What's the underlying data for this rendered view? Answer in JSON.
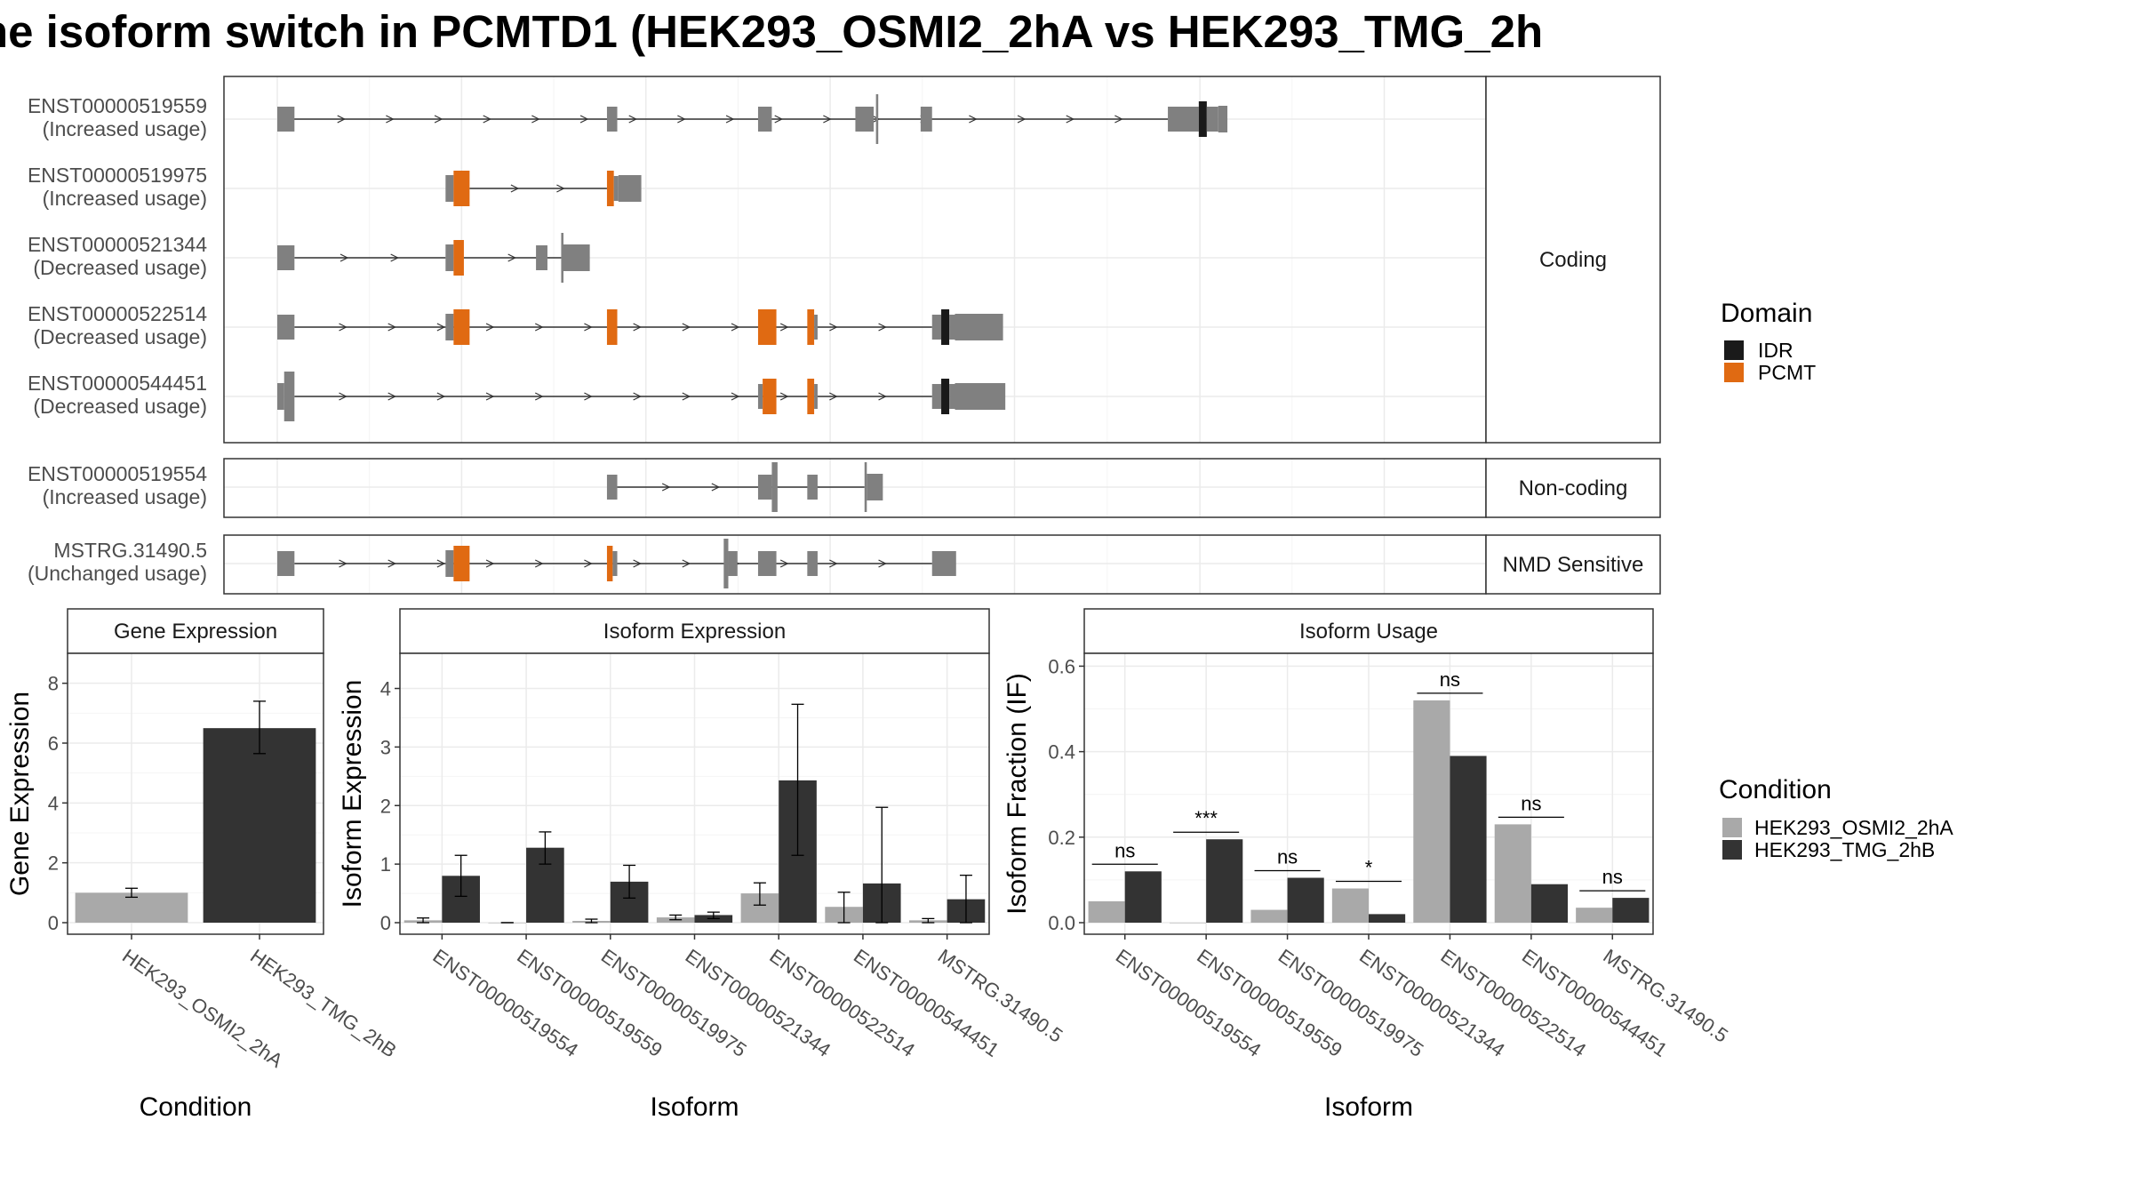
{
  "title": "ne isoform switch in PCMTD1 (HEK293_OSMI2_2hA vs HEK293_TMG_2h",
  "colors": {
    "exon": "#808080",
    "PCMT": "#E06A12",
    "IDR": "#1a1a1a",
    "HEK293_OSMI2_2hA": "#A9A9A9",
    "HEK293_TMG_2hB": "#333333",
    "grid": "#EBEBEB",
    "strip_bg": "#FFFFFF"
  },
  "chart_data": [
    {
      "type": "gene-structure",
      "genomic_range": [
        0,
        100
      ],
      "facets": [
        {
          "label": "Coding",
          "transcripts": [
            {
              "id": "ENST00000519559",
              "usage": "(Increased usage)"
            },
            {
              "id": "ENST00000519975",
              "usage": "(Increased usage)"
            },
            {
              "id": "ENST00000521344",
              "usage": "(Decreased usage)"
            },
            {
              "id": "ENST00000522514",
              "usage": "(Decreased usage)"
            },
            {
              "id": "ENST00000544451",
              "usage": "(Decreased usage)"
            }
          ]
        },
        {
          "label": "Non-coding",
          "transcripts": [
            {
              "id": "ENST00000519554",
              "usage": "(Increased usage)"
            }
          ]
        },
        {
          "label": "NMD Sensitive",
          "transcripts": [
            {
              "id": "MSTRG.31490.5",
              "usage": "(Unchanged usage)"
            }
          ]
        }
      ],
      "legend": {
        "title": "Domain",
        "entries": [
          "IDR",
          "PCMT"
        ]
      }
    },
    {
      "type": "bar",
      "title": "Gene Expression",
      "xlabel": "Condition",
      "ylabel": "Gene Expression",
      "categories": [
        "HEK293_OSMI2_2hA",
        "HEK293_TMG_2hB"
      ],
      "values": [
        1.0,
        6.5
      ],
      "error": [
        [
          0.85,
          1.15
        ],
        [
          5.65,
          7.4
        ]
      ],
      "ylim": [
        0,
        9
      ],
      "yticks": [
        0,
        2,
        4,
        6,
        8
      ]
    },
    {
      "type": "bar",
      "title": "Isoform Expression",
      "xlabel": "Isoform",
      "ylabel": "Isoform Expression",
      "categories": [
        "ENST00000519554",
        "ENST00000519559",
        "ENST00000519975",
        "ENST00000521344",
        "ENST00000522514",
        "ENST00000544451",
        "MSTRG.31490.5"
      ],
      "series": [
        {
          "name": "HEK293_OSMI2_2hA",
          "values": [
            0.04,
            0.0,
            0.03,
            0.09,
            0.5,
            0.27,
            0.04
          ],
          "error": [
            [
              0.0,
              0.08
            ],
            [
              0.0,
              0.0
            ],
            [
              0.0,
              0.06
            ],
            [
              0.05,
              0.13
            ],
            [
              0.3,
              0.68
            ],
            [
              0.0,
              0.52
            ],
            [
              0.0,
              0.07
            ]
          ]
        },
        {
          "name": "HEK293_TMG_2hB",
          "values": [
            0.8,
            1.28,
            0.7,
            0.13,
            2.43,
            0.67,
            0.4
          ],
          "error": [
            [
              0.45,
              1.15
            ],
            [
              1.0,
              1.55
            ],
            [
              0.42,
              0.98
            ],
            [
              0.07,
              0.18
            ],
            [
              1.15,
              3.73
            ],
            [
              0.0,
              1.97
            ],
            [
              0.0,
              0.81
            ]
          ]
        }
      ],
      "ylim": [
        0,
        4.6
      ],
      "yticks": [
        0,
        1,
        2,
        3,
        4
      ]
    },
    {
      "type": "bar",
      "title": "Isoform Usage",
      "xlabel": "Isoform",
      "ylabel": "Isoform Fraction (IF)",
      "categories": [
        "ENST00000519554",
        "ENST00000519559",
        "ENST00000519975",
        "ENST00000521344",
        "ENST00000522514",
        "ENST00000544451",
        "MSTRG.31490.5"
      ],
      "series": [
        {
          "name": "HEK293_OSMI2_2hA",
          "values": [
            0.05,
            0.0,
            0.03,
            0.08,
            0.52,
            0.23,
            0.035
          ]
        },
        {
          "name": "HEK293_TMG_2hB",
          "values": [
            0.12,
            0.195,
            0.105,
            0.02,
            0.39,
            0.09,
            0.058
          ]
        }
      ],
      "significance": [
        "ns",
        "***",
        "ns",
        "*",
        "ns",
        "ns",
        "ns"
      ],
      "ylim": [
        0,
        0.63
      ],
      "yticks": [
        0.0,
        0.2,
        0.4,
        0.6
      ],
      "legend": {
        "title": "Condition",
        "entries": [
          "HEK293_OSMI2_2hA",
          "HEK293_TMG_2hB"
        ]
      }
    }
  ]
}
